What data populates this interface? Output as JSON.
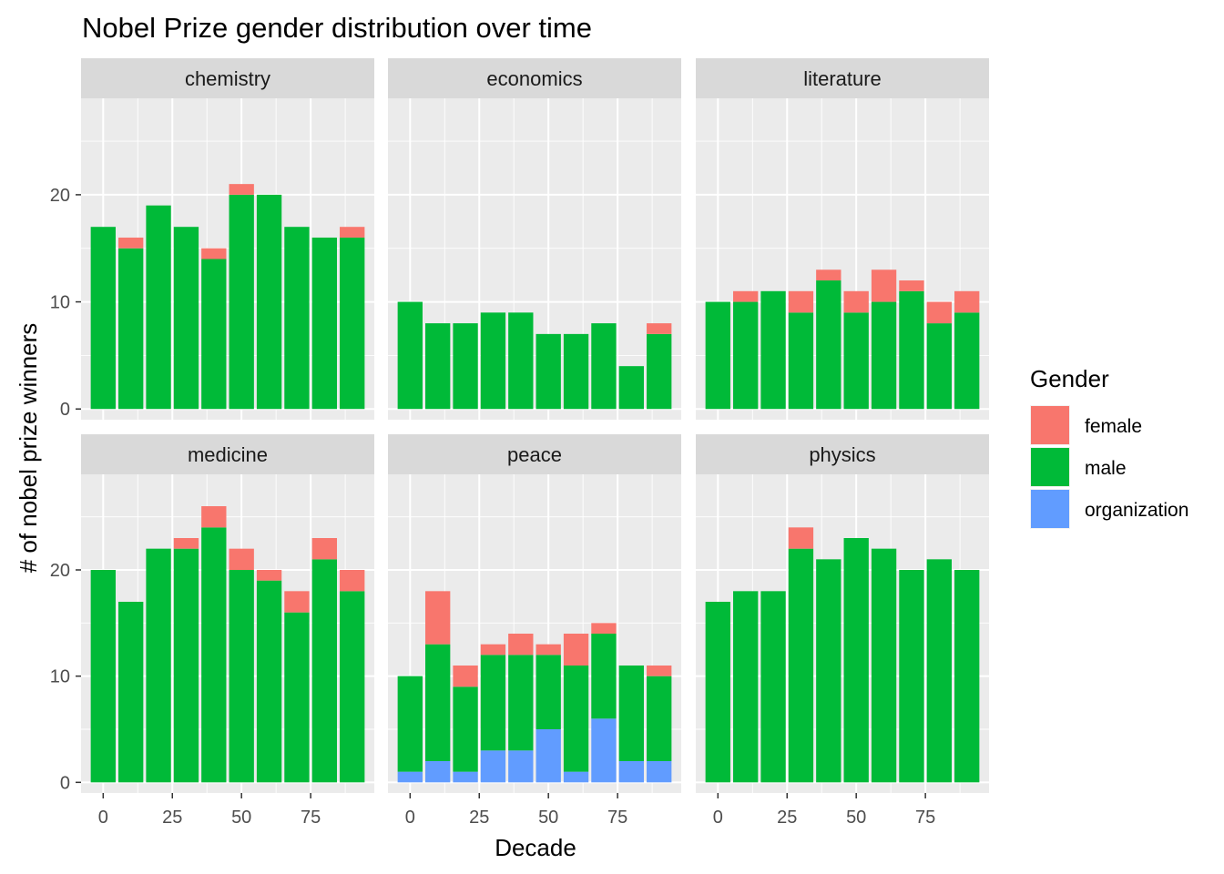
{
  "chart_data": {
    "type": "bar",
    "stacked": true,
    "faceted": true,
    "title": "Nobel Prize gender distribution over time",
    "xlabel": "Decade",
    "ylabel": "# of nobel prize winners",
    "x": [
      0,
      10,
      20,
      30,
      40,
      50,
      60,
      70,
      80,
      90
    ],
    "x_ticks": [
      0,
      25,
      50,
      75
    ],
    "ylim": [
      -1,
      29
    ],
    "y_ticks": [
      0,
      10,
      20
    ],
    "grid": true,
    "legend": {
      "title": "Gender",
      "placement": "right",
      "entries": [
        {
          "key": "female",
          "label": "female",
          "color": "#F8766D"
        },
        {
          "key": "male",
          "label": "male",
          "color": "#00BA38"
        },
        {
          "key": "organization",
          "label": "organization",
          "color": "#619CFF"
        }
      ]
    },
    "facets": [
      {
        "name": "chemistry",
        "series": {
          "organization": [
            0,
            0,
            0,
            0,
            0,
            0,
            0,
            0,
            0,
            0
          ],
          "male": [
            17,
            15,
            19,
            17,
            14,
            20,
            20,
            17,
            16,
            16
          ],
          "female": [
            0,
            1,
            0,
            0,
            1,
            1,
            0,
            0,
            0,
            1
          ]
        }
      },
      {
        "name": "economics",
        "series": {
          "organization": [
            0,
            0,
            0,
            0,
            0,
            0,
            0,
            0,
            0,
            0
          ],
          "male": [
            10,
            8,
            8,
            9,
            9,
            7,
            7,
            8,
            4,
            7
          ],
          "female": [
            0,
            0,
            0,
            0,
            0,
            0,
            0,
            0,
            0,
            1
          ]
        }
      },
      {
        "name": "literature",
        "series": {
          "organization": [
            0,
            0,
            0,
            0,
            0,
            0,
            0,
            0,
            0,
            0
          ],
          "male": [
            10,
            10,
            11,
            9,
            12,
            9,
            10,
            11,
            8,
            9
          ],
          "female": [
            0,
            1,
            0,
            2,
            1,
            2,
            3,
            1,
            2,
            2
          ]
        }
      },
      {
        "name": "medicine",
        "series": {
          "organization": [
            0,
            0,
            0,
            0,
            0,
            0,
            0,
            0,
            0,
            0
          ],
          "male": [
            20,
            17,
            22,
            22,
            24,
            20,
            19,
            16,
            21,
            18
          ],
          "female": [
            0,
            0,
            0,
            1,
            2,
            2,
            1,
            2,
            2,
            2
          ]
        }
      },
      {
        "name": "peace",
        "series": {
          "organization": [
            1,
            2,
            1,
            3,
            3,
            5,
            1,
            6,
            2,
            2
          ],
          "male": [
            9,
            11,
            8,
            9,
            9,
            7,
            10,
            8,
            9,
            8
          ],
          "female": [
            0,
            5,
            2,
            1,
            2,
            1,
            3,
            1,
            0,
            1
          ]
        }
      },
      {
        "name": "physics",
        "series": {
          "organization": [
            0,
            0,
            0,
            0,
            0,
            0,
            0,
            0,
            0,
            0
          ],
          "male": [
            17,
            18,
            18,
            22,
            21,
            23,
            22,
            20,
            21,
            20
          ],
          "female": [
            0,
            0,
            0,
            2,
            0,
            0,
            0,
            0,
            0,
            0
          ]
        }
      }
    ]
  },
  "colors": {
    "panel_bg": "#EBEBEB",
    "strip_bg": "#D9D9D9",
    "grid": "#FFFFFF",
    "tick": "#333333"
  }
}
